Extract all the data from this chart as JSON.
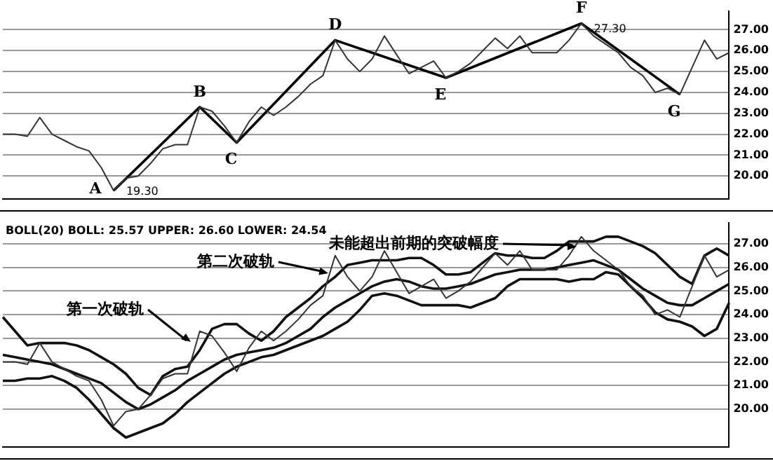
{
  "chart_data": [
    {
      "type": "line",
      "categories": [
        null,
        null,
        null,
        null,
        null,
        null,
        null,
        null,
        null,
        null,
        null,
        null,
        null,
        null,
        null,
        null,
        null,
        null,
        null,
        null,
        null,
        null,
        null,
        null,
        null,
        null,
        null,
        null,
        null,
        null,
        null,
        null,
        null,
        null,
        null,
        null,
        null,
        null,
        null,
        null,
        null,
        null,
        null,
        null,
        null,
        null,
        null,
        null,
        null,
        null,
        null,
        null,
        null,
        null,
        null,
        null,
        null,
        null,
        null,
        null
      ],
      "ylim": [
        18.9,
        27.9
      ],
      "yticks": [
        {
          "value": 20,
          "label": "20.00"
        },
        {
          "value": 21,
          "label": "21.00"
        },
        {
          "value": 22,
          "label": "22.00"
        },
        {
          "value": 23,
          "label": "23.00"
        },
        {
          "value": 24,
          "label": "24.00"
        },
        {
          "value": 25,
          "label": "25.00"
        },
        {
          "value": 26,
          "label": "26.00"
        },
        {
          "value": 27,
          "label": "27.00"
        }
      ],
      "grid": "y",
      "legend": false,
      "tick_labels": "y",
      "marker": "none",
      "series": [
        {
          "color": "#333333",
          "values": [
            22.0,
            22.0,
            21.9,
            22.8,
            22.0,
            21.7,
            21.4,
            21.2,
            20.4,
            19.3,
            19.9,
            20.0,
            20.6,
            21.3,
            21.5,
            21.5,
            23.3,
            23.1,
            22.4,
            21.6,
            22.6,
            23.3,
            22.9,
            23.3,
            23.8,
            24.4,
            24.8,
            26.5,
            25.6,
            25.0,
            25.6,
            26.7,
            25.8,
            24.9,
            25.2,
            25.5,
            24.7,
            25.0,
            25.4,
            26.0,
            26.6,
            26.1,
            26.7,
            25.9,
            25.9,
            25.9,
            26.5,
            27.3,
            26.7,
            26.3,
            25.9,
            25.2,
            24.8,
            24.0,
            24.2,
            23.9,
            25.2,
            26.5,
            25.6,
            25.9
          ]
        },
        {
          "color": "#000000",
          "values": [
            null,
            null,
            null,
            null,
            null,
            null,
            null,
            null,
            null,
            19.3,
            null,
            null,
            null,
            null,
            null,
            null,
            23.3,
            null,
            null,
            21.6,
            null,
            null,
            null,
            null,
            null,
            null,
            null,
            26.5,
            null,
            null,
            null,
            null,
            null,
            null,
            null,
            null,
            24.7,
            null,
            null,
            null,
            null,
            null,
            null,
            null,
            null,
            null,
            null,
            27.3,
            null,
            null,
            null,
            null,
            null,
            null,
            null,
            23.9,
            null,
            null,
            null,
            null
          ],
          "value_labels": [
            null,
            null,
            null,
            null,
            null,
            null,
            null,
            null,
            null,
            "19.30",
            null,
            null,
            null,
            null,
            null,
            null,
            null,
            null,
            null,
            null,
            null,
            null,
            null,
            null,
            null,
            null,
            null,
            null,
            null,
            null,
            null,
            null,
            null,
            null,
            null,
            null,
            null,
            null,
            null,
            null,
            null,
            null,
            null,
            null,
            null,
            null,
            null,
            "27.30",
            null,
            null,
            null,
            null,
            null,
            null,
            null,
            null,
            null,
            null,
            null,
            null
          ]
        }
      ],
      "annotations": [
        "A",
        "B",
        "C",
        "D",
        "E",
        "F",
        "G"
      ]
    },
    {
      "type": "line",
      "categories": [
        null,
        null,
        null,
        null,
        null,
        null,
        null,
        null,
        null,
        null,
        null,
        null,
        null,
        null,
        null,
        null,
        null,
        null,
        null,
        null,
        null,
        null,
        null,
        null,
        null,
        null,
        null,
        null,
        null,
        null,
        null,
        null,
        null,
        null,
        null,
        null,
        null,
        null,
        null,
        null,
        null,
        null,
        null,
        null,
        null,
        null,
        null,
        null,
        null,
        null,
        null,
        null,
        null,
        null,
        null,
        null,
        null,
        null,
        null,
        null
      ],
      "ylim": [
        18.4,
        27.9
      ],
      "yticks": [
        {
          "value": 20,
          "label": "20.00"
        },
        {
          "value": 21,
          "label": "21.00"
        },
        {
          "value": 22,
          "label": "22.00"
        },
        {
          "value": 23,
          "label": "23.00"
        },
        {
          "value": 24,
          "label": "24.00"
        },
        {
          "value": 25,
          "label": "25.00"
        },
        {
          "value": 26,
          "label": "26.00"
        },
        {
          "value": 27,
          "label": "27.00"
        }
      ],
      "grid": "y",
      "legend": false,
      "tick_labels": "y",
      "marker": "none",
      "series": [
        {
          "color": "#333333",
          "values": [
            22.0,
            22.0,
            21.9,
            22.8,
            22.0,
            21.7,
            21.4,
            21.2,
            20.4,
            19.3,
            19.9,
            20.0,
            20.6,
            21.3,
            21.5,
            21.5,
            23.3,
            23.1,
            22.4,
            21.6,
            22.6,
            23.3,
            22.9,
            23.3,
            23.8,
            24.4,
            24.8,
            26.5,
            25.6,
            25.0,
            25.6,
            26.7,
            25.8,
            24.9,
            25.2,
            25.5,
            24.7,
            25.0,
            25.4,
            26.0,
            26.6,
            26.1,
            26.7,
            25.9,
            25.9,
            25.9,
            26.5,
            27.3,
            26.7,
            26.3,
            25.9,
            25.2,
            24.8,
            24.0,
            24.2,
            23.9,
            25.2,
            26.5,
            25.6,
            25.9
          ]
        },
        {
          "color": "#111111",
          "values": [
            23.9,
            23.3,
            22.7,
            22.8,
            22.8,
            22.8,
            22.7,
            22.5,
            22.2,
            21.9,
            21.5,
            20.9,
            20.6,
            21.4,
            21.7,
            21.8,
            22.5,
            23.4,
            23.6,
            23.6,
            23.2,
            22.9,
            23.3,
            23.9,
            24.3,
            24.7,
            25.2,
            25.6,
            26.1,
            26.2,
            26.3,
            26.3,
            26.3,
            26.4,
            26.4,
            26.1,
            25.7,
            25.7,
            25.8,
            26.2,
            26.6,
            26.5,
            26.5,
            26.4,
            26.4,
            26.7,
            27.1,
            27.1,
            27.1,
            27.3,
            27.3,
            27.1,
            26.9,
            26.6,
            26.1,
            25.6,
            25.3,
            26.5,
            26.8,
            26.5
          ]
        },
        {
          "color": "#111111",
          "values": [
            22.3,
            22.2,
            22.1,
            22.0,
            21.9,
            21.7,
            21.5,
            21.3,
            21.1,
            20.7,
            20.3,
            20.0,
            20.2,
            20.5,
            20.8,
            21.2,
            21.5,
            21.8,
            22.1,
            22.3,
            22.4,
            22.5,
            22.6,
            22.8,
            23.1,
            23.4,
            23.9,
            24.3,
            24.6,
            24.9,
            25.2,
            25.4,
            25.5,
            25.4,
            25.2,
            25.1,
            25.1,
            25.2,
            25.3,
            25.5,
            25.7,
            25.8,
            25.9,
            25.9,
            25.9,
            26.0,
            26.1,
            26.2,
            26.3,
            26.1,
            25.9,
            25.5,
            25.1,
            24.8,
            24.5,
            24.4,
            24.4,
            24.7,
            25.0,
            25.3
          ]
        },
        {
          "color": "#111111",
          "values": [
            21.2,
            21.2,
            21.3,
            21.3,
            21.4,
            21.2,
            20.9,
            20.4,
            19.8,
            19.2,
            18.8,
            19.0,
            19.2,
            19.4,
            19.8,
            20.3,
            20.7,
            21.1,
            21.5,
            21.8,
            22.0,
            22.2,
            22.3,
            22.5,
            22.7,
            22.9,
            23.1,
            23.4,
            23.7,
            24.2,
            24.8,
            24.9,
            24.8,
            24.6,
            24.4,
            24.4,
            24.4,
            24.4,
            24.3,
            24.5,
            24.7,
            25.2,
            25.5,
            25.5,
            25.5,
            25.5,
            25.4,
            25.5,
            25.5,
            25.8,
            25.7,
            25.2,
            24.7,
            24.1,
            23.8,
            23.7,
            23.5,
            23.1,
            23.4,
            24.5
          ]
        }
      ],
      "annotations": [
        "BOLL(20) BOLL: 25.57 UPPER: 26.60 LOWER: 24.54",
        "第一次破轨",
        "第二次破轨",
        "未能超出前期的突破幅度"
      ]
    }
  ]
}
